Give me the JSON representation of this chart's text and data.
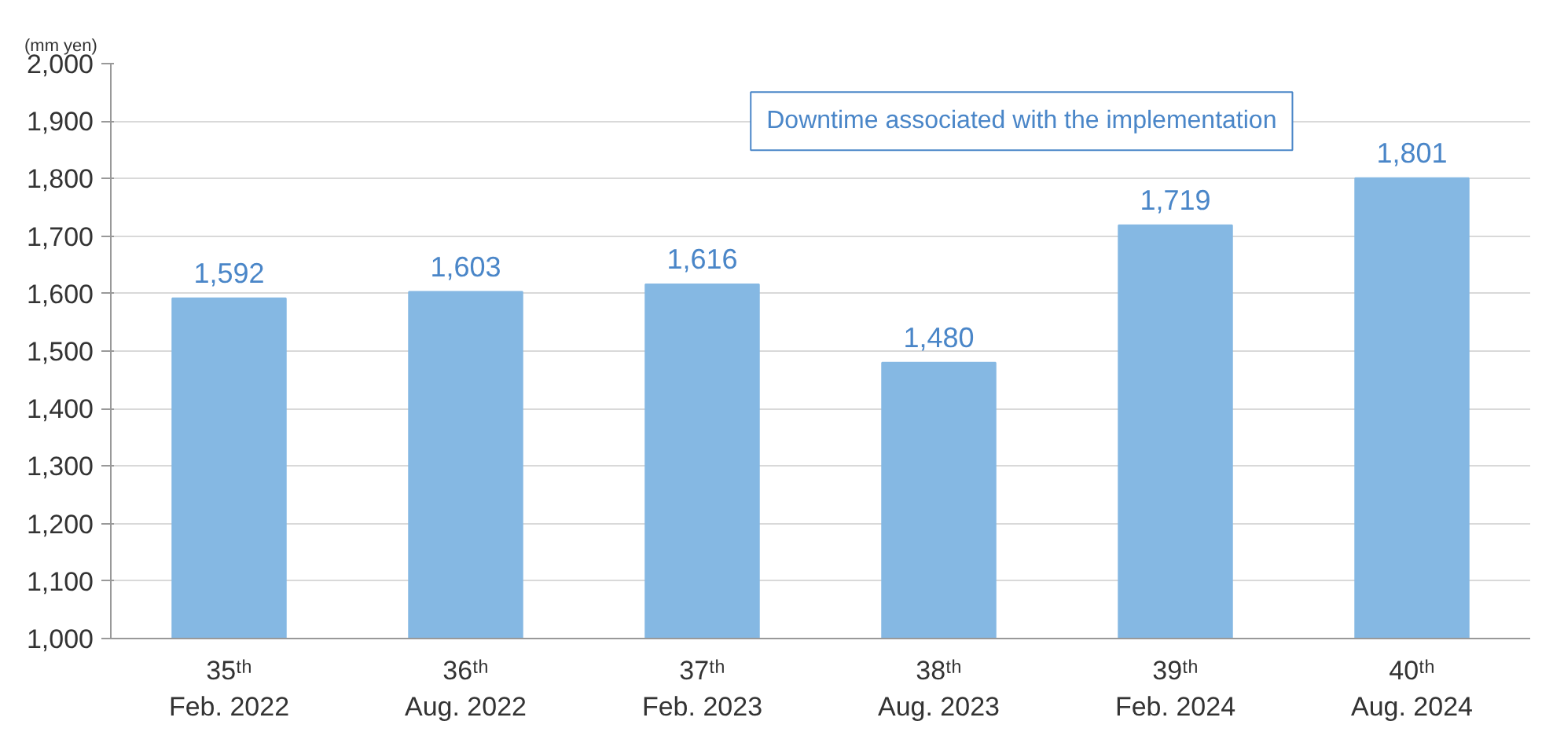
{
  "chart_data": {
    "type": "bar",
    "ylabel": "(mm yen)",
    "categories": [
      "35ᵗʰ\nFeb. 2022",
      "36ᵗʰ\nAug. 2022",
      "37ᵗʰ\nFeb. 2023",
      "38ᵗʰ\nAug. 2023",
      "39ᵗʰ\nFeb. 2024",
      "40ᵗʰ\nAug. 2024"
    ],
    "values": [
      1592,
      1603,
      1616,
      1480,
      1719,
      1801
    ],
    "color": "#85b8e3",
    "value_labels": [
      "1,592",
      "1,603",
      "1,616",
      "1,480",
      "1,719",
      "1,801"
    ],
    "ylim": [
      1000,
      2000
    ],
    "yticks": [
      {
        "value": 1000,
        "label": "1,000"
      },
      {
        "value": 1100,
        "label": "1,100"
      },
      {
        "value": 1200,
        "label": "1,200"
      },
      {
        "value": 1300,
        "label": "1,300"
      },
      {
        "value": 1400,
        "label": "1,400"
      },
      {
        "value": 1500,
        "label": "1,500"
      },
      {
        "value": 1600,
        "label": "1,600"
      },
      {
        "value": 1700,
        "label": "1,700"
      },
      {
        "value": 1800,
        "label": "1,800"
      },
      {
        "value": 1900,
        "label": "1,900"
      },
      {
        "value": 2000,
        "label": "2,000"
      }
    ],
    "grid": "y",
    "annotations": [
      "Downtime associated with the implementation"
    ]
  }
}
